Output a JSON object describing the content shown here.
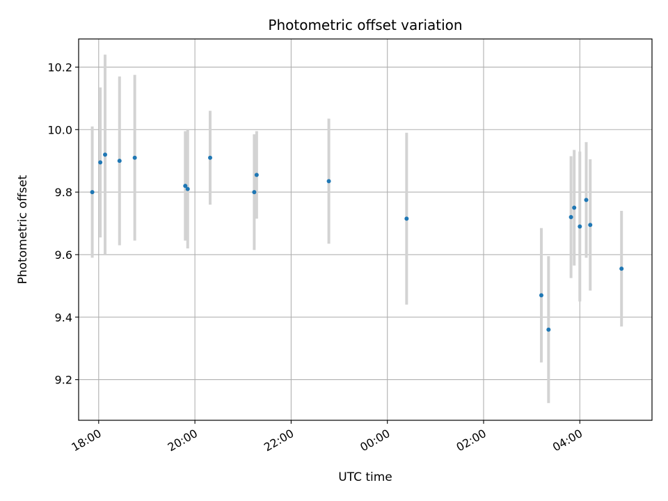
{
  "chart_data": {
    "type": "scatter",
    "title": "Photometric offset variation",
    "xlabel": "UTC time",
    "ylabel": "Photometric offset",
    "x_unit": "hours",
    "x_range": [
      "17:35",
      "05:30"
    ],
    "ylim": [
      9.07,
      10.29
    ],
    "grid": true,
    "y_ticks": [
      "9.2",
      "9.4",
      "9.6",
      "9.8",
      "10.0",
      "10.2"
    ],
    "x_ticks": [
      {
        "time": "18:00",
        "label": "18:00"
      },
      {
        "time": "20:00",
        "label": "20:00"
      },
      {
        "time": "22:00",
        "label": "22:00"
      },
      {
        "time": "00:00",
        "label": "00:00"
      },
      {
        "time": "02:00",
        "label": "02:00"
      },
      {
        "time": "04:00",
        "label": "04:00"
      }
    ],
    "marker_color": "#1f77b4",
    "errorbar_color": "#d3d3d3",
    "points": [
      {
        "time": "17:52",
        "y": 9.8,
        "err": 0.21
      },
      {
        "time": "18:02",
        "y": 9.895,
        "err": 0.24
      },
      {
        "time": "18:08",
        "y": 9.92,
        "err": 0.32
      },
      {
        "time": "18:26",
        "y": 9.9,
        "err": 0.27
      },
      {
        "time": "18:45",
        "y": 9.91,
        "err": 0.265
      },
      {
        "time": "19:48",
        "y": 9.82,
        "err": 0.175
      },
      {
        "time": "19:51",
        "y": 9.81,
        "err": 0.19
      },
      {
        "time": "20:19",
        "y": 9.91,
        "err": 0.15
      },
      {
        "time": "21:14",
        "y": 9.8,
        "err": 0.185
      },
      {
        "time": "21:17",
        "y": 9.855,
        "err": 0.14
      },
      {
        "time": "22:47",
        "y": 9.835,
        "err": 0.2
      },
      {
        "time": "00:24",
        "y": 9.715,
        "err": 0.275
      },
      {
        "time": "03:12",
        "y": 9.47,
        "err": 0.215
      },
      {
        "time": "03:21",
        "y": 9.36,
        "err": 0.235
      },
      {
        "time": "03:49",
        "y": 9.72,
        "err": 0.195
      },
      {
        "time": "03:53",
        "y": 9.75,
        "err": 0.185
      },
      {
        "time": "04:00",
        "y": 9.69,
        "err": 0.24
      },
      {
        "time": "04:08",
        "y": 9.775,
        "err": 0.185
      },
      {
        "time": "04:13",
        "y": 9.695,
        "err": 0.21
      },
      {
        "time": "04:52",
        "y": 9.555,
        "err": 0.185
      }
    ]
  }
}
